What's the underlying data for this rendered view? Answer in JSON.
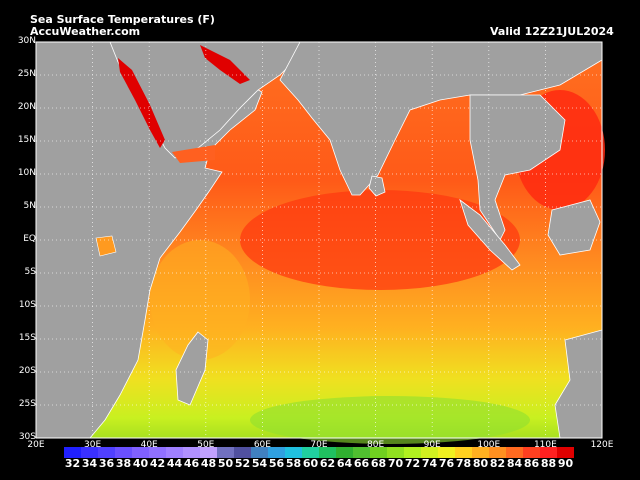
{
  "header": {
    "title": "Sea Surface Temperatures (F)",
    "subtitle": "AccuWeather.com",
    "valid": "Valid    12Z21JUL2024"
  },
  "map": {
    "lat_labels": [
      "30N",
      "25N",
      "20N",
      "15N",
      "10N",
      "5N",
      "EQ",
      "5S",
      "10S",
      "15S",
      "20S",
      "25S",
      "30S"
    ],
    "lon_labels": [
      "20E",
      "30E",
      "40E",
      "50E",
      "60E",
      "70E",
      "80E",
      "90E",
      "100E",
      "110E",
      "120E"
    ],
    "land_color": "#a0a0a0",
    "grid_color": "#ffffff"
  },
  "color_scale": {
    "labels": [
      "32",
      "34",
      "36",
      "38",
      "40",
      "42",
      "44",
      "46",
      "48",
      "50",
      "52",
      "54",
      "56",
      "58",
      "60",
      "62",
      "64",
      "66",
      "68",
      "70",
      "72",
      "74",
      "76",
      "78",
      "80",
      "82",
      "84",
      "86",
      "88",
      "90"
    ],
    "colors": [
      "#2020ff",
      "#3a30ff",
      "#5040ff",
      "#6a50ff",
      "#8060ff",
      "#9070ff",
      "#a080ff",
      "#b090ff",
      "#c0a0ff",
      "#7070c0",
      "#5050a0",
      "#4080c0",
      "#30a0e0",
      "#20c0e0",
      "#20d0a0",
      "#20c060",
      "#30b030",
      "#50c030",
      "#70d020",
      "#90e020",
      "#b0f020",
      "#d0f020",
      "#f0f020",
      "#ffd020",
      "#ffb020",
      "#ff9020",
      "#ff6a20",
      "#ff4020",
      "#ff2020",
      "#e00000"
    ]
  }
}
